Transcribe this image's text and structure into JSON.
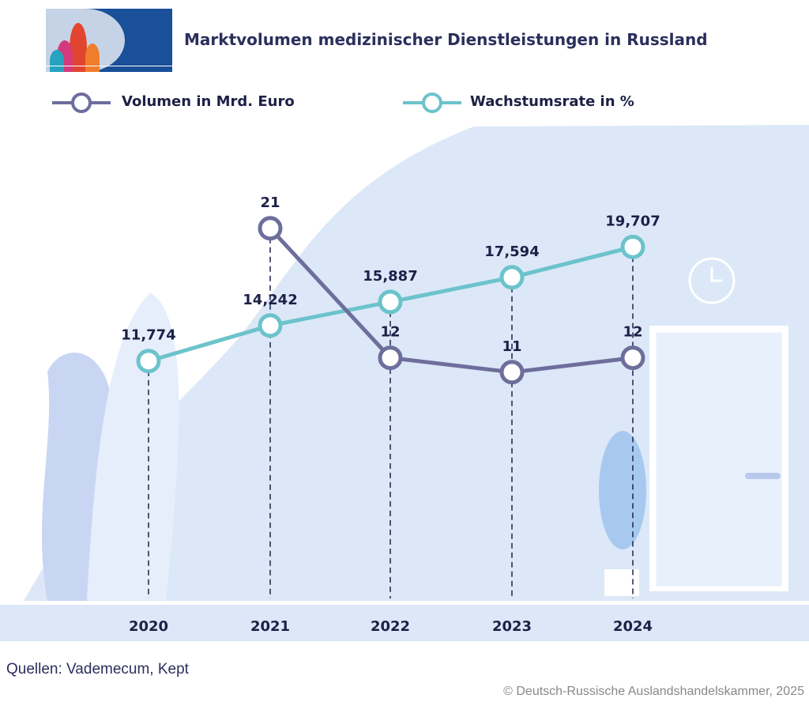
{
  "header": {
    "title": "Marktvolumen medizinischer Dienstleistungen in Russland"
  },
  "footer": {
    "sources": "Quellen: Vademecum, Kept",
    "copyright": "© Deutsch-Russische Auslandshandelskammer, 2025"
  },
  "colors": {
    "volume": "#6e6e9c",
    "growth": "#6cc3cb",
    "background": "#dce8f8",
    "text": "#1d2046"
  },
  "chart_data": {
    "type": "line",
    "title": "Marktvolumen medizinischer Dienstleistungen in Russland",
    "categories": [
      "2020",
      "2021",
      "2022",
      "2023",
      "2024"
    ],
    "legend_position": "top-left",
    "grid": false,
    "series": [
      {
        "name": "Volumen in Mrd. Euro",
        "values": [
          null,
          21,
          12,
          11,
          12
        ],
        "labels": [
          "",
          "21",
          "12",
          "11",
          "12"
        ],
        "color": "#6e6e9c"
      },
      {
        "name": "Wachstumsrate in %",
        "values": [
          11.774,
          14.242,
          15.887,
          17.594,
          19.707
        ],
        "labels": [
          "11,774",
          "14,242",
          "15,887",
          "17,594",
          "19,707"
        ],
        "color": "#6cc3cb"
      }
    ]
  }
}
